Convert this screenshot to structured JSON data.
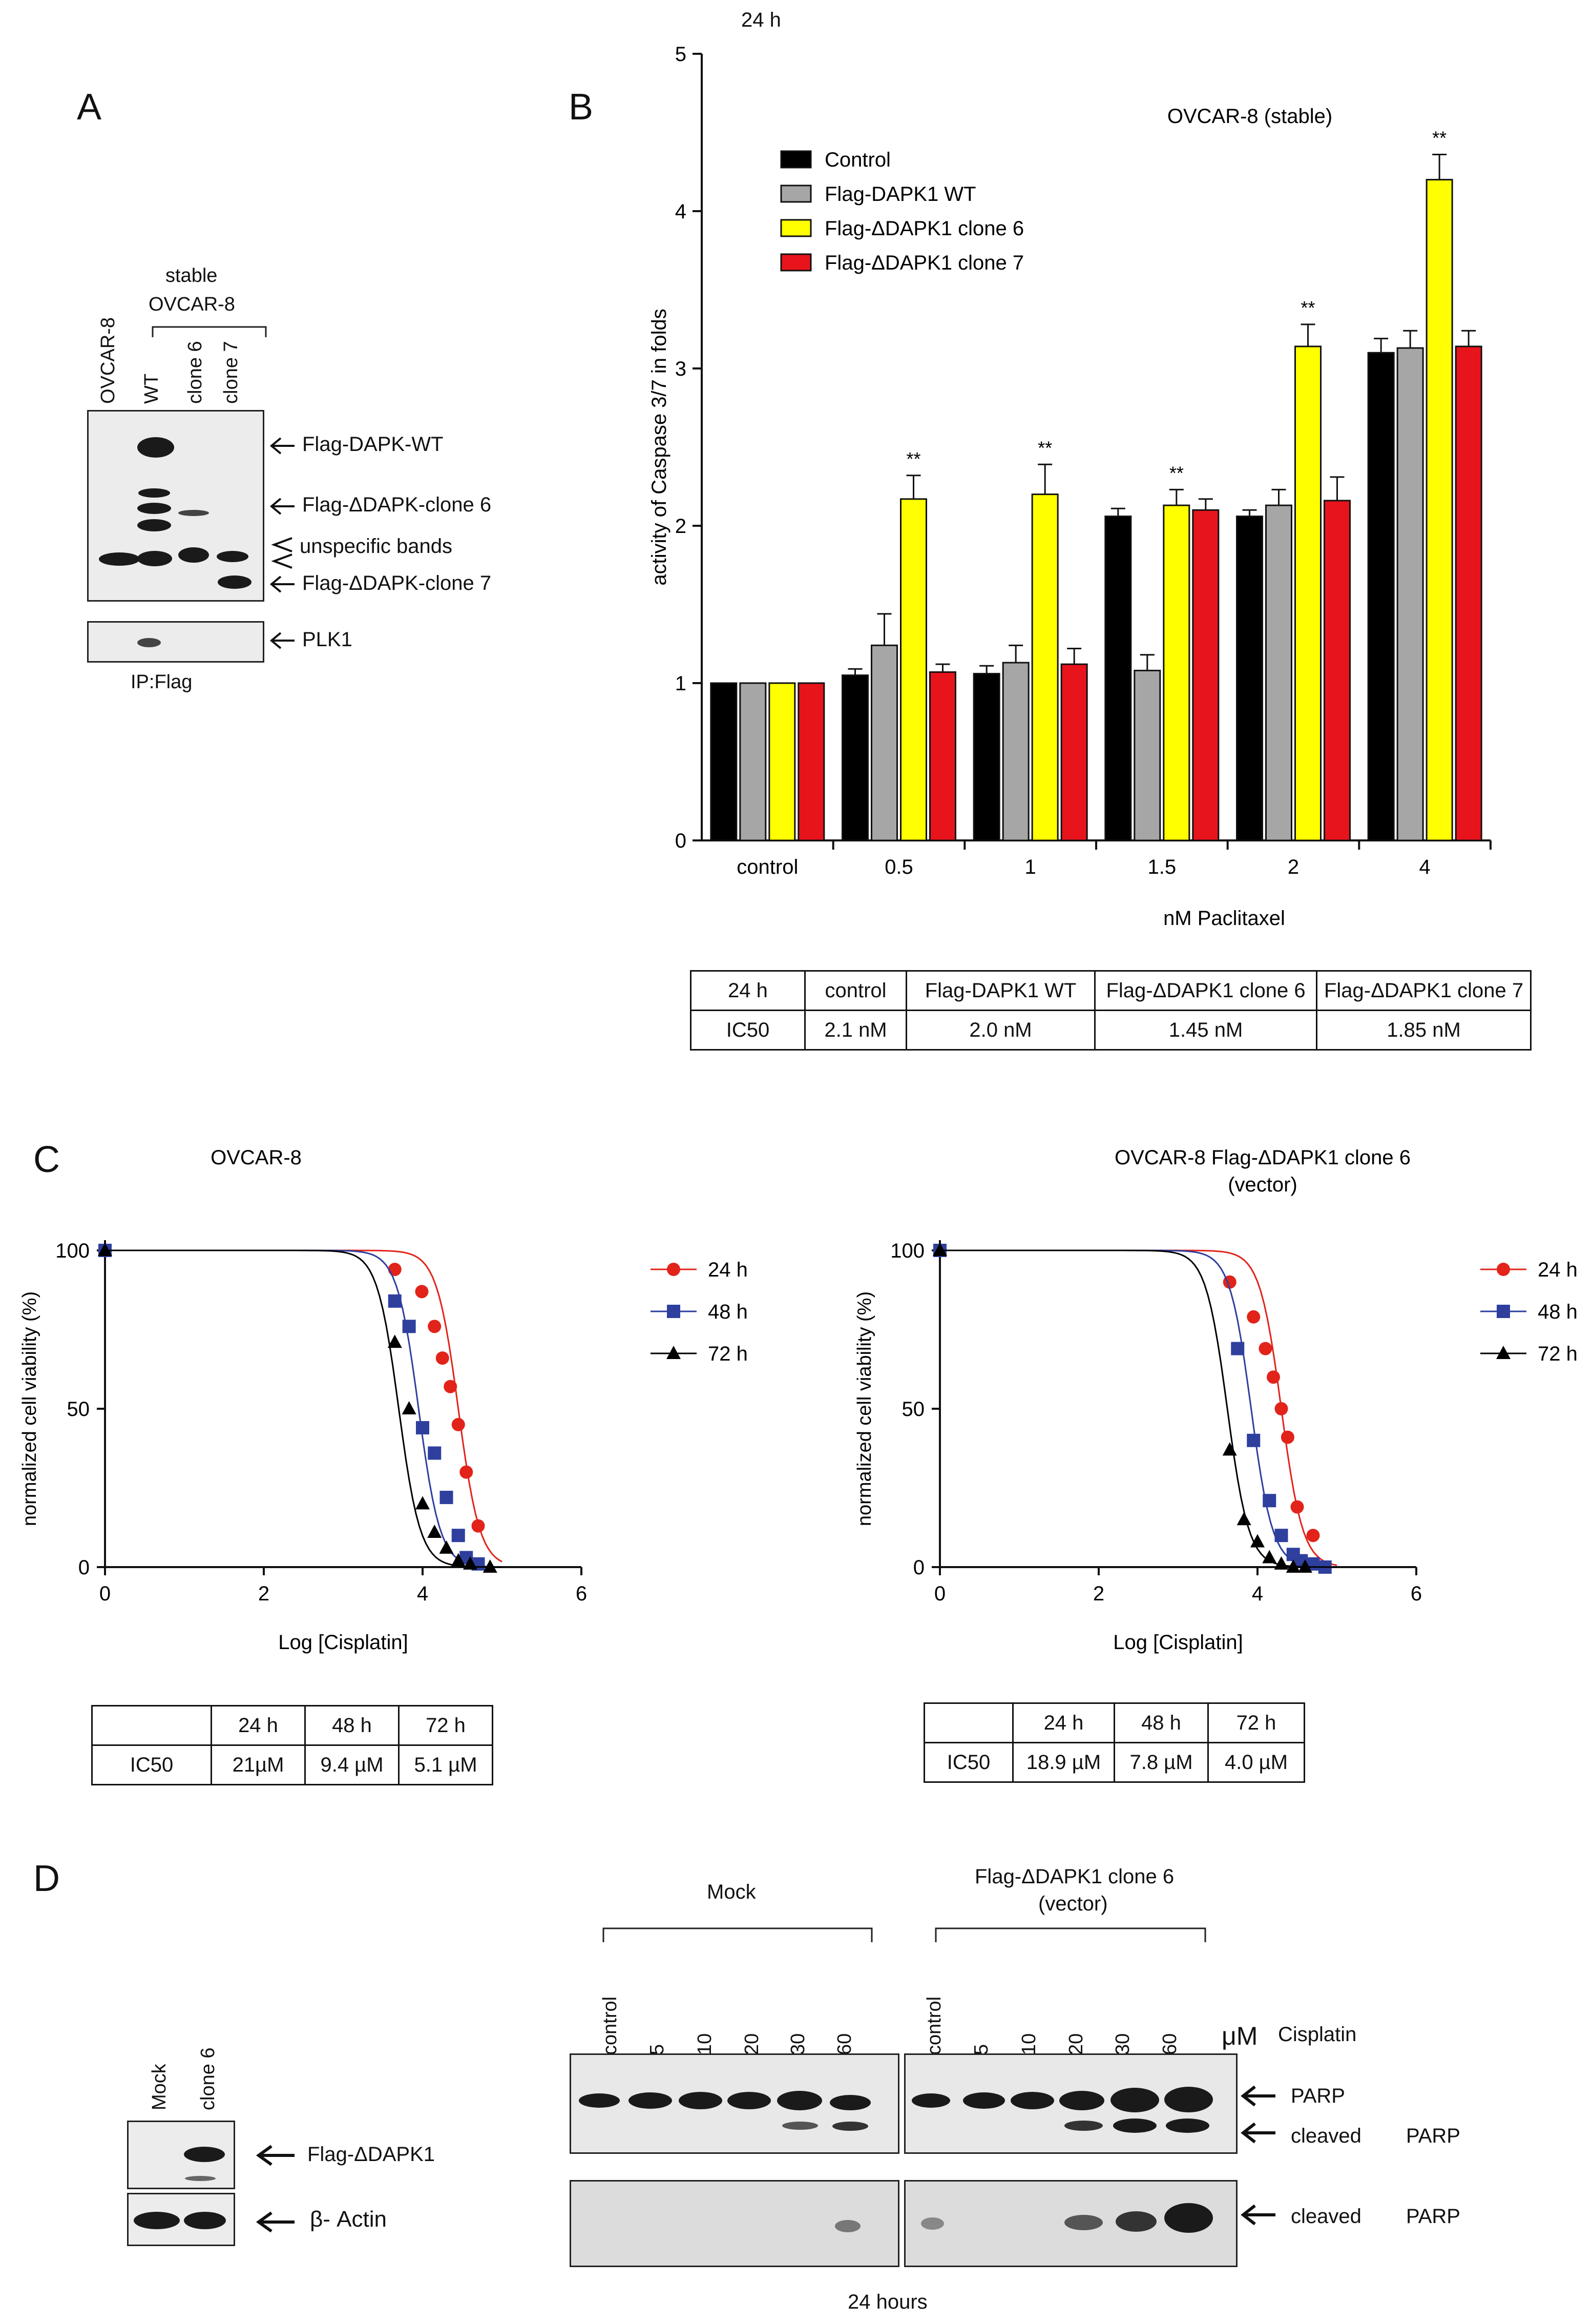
{
  "panelA": {
    "label": "A",
    "stable_label": "stable",
    "cell_line_label": "OVCAR-8",
    "lanes": [
      "OVCAR-8",
      "WT",
      "clone 6",
      "clone 7"
    ],
    "annotations": [
      "Flag-DAPK-WT",
      "Flag-ΔDAPK-clone 6",
      "unspecific bands",
      "Flag-ΔDAPK-clone 7",
      "PLK1"
    ],
    "ip_label": "IP:Flag"
  },
  "panelB": {
    "label": "B",
    "corner_label": "24 h",
    "table": {
      "headers": [
        "24 h",
        "control",
        "Flag-DAPK1 WT",
        "Flag-ΔDAPK1 clone 6",
        "Flag-ΔDAPK1 clone 7"
      ],
      "row": [
        "IC50",
        "2.1 nM",
        "2.0 nM",
        "1.45 nM",
        "1.85 nM"
      ]
    }
  },
  "panelC": {
    "label": "C",
    "left_table": {
      "headers": [
        "",
        "24 h",
        "48 h",
        "72 h"
      ],
      "row": [
        "IC50",
        "21µM",
        "9.4 µM",
        "5.1 µM"
      ]
    },
    "right_table": {
      "headers": [
        "",
        "24 h",
        "48 h",
        "72 h"
      ],
      "row": [
        "IC50",
        "18.9 µM",
        "7.8 µM",
        "4.0 µM"
      ]
    }
  },
  "panelD": {
    "label": "D",
    "small_lanes": [
      "Mock",
      "clone 6"
    ],
    "small_annotations": [
      "Flag-ΔDAPK1",
      "β- Actin"
    ],
    "group_mock": "Mock",
    "group_clone": "Flag-ΔDAPK1 clone 6",
    "group_clone_sub": "(vector)",
    "doses": [
      "control",
      "5",
      "10",
      "20",
      "30",
      "60"
    ],
    "unit": "μM",
    "drug": "Cisplatin",
    "annot_parp": "PARP",
    "annot_cleaved": "cleaved",
    "footer": "24   hours"
  },
  "chart_data": [
    {
      "type": "bar",
      "title": "OVCAR-8 (stable)",
      "xlabel": "nM Paclitaxel",
      "ylabel": "activity of Caspase 3/7 in folds",
      "ylim": [
        0,
        5
      ],
      "yticks": [
        0,
        1,
        2,
        3,
        4,
        5
      ],
      "categories": [
        "control",
        "0.5",
        "1",
        "1.5",
        "2",
        "4"
      ],
      "series": [
        {
          "name": "Control",
          "color": "#000000",
          "values": [
            1.0,
            1.05,
            1.06,
            2.06,
            2.06,
            3.1
          ],
          "errors": [
            0,
            0.04,
            0.05,
            0.05,
            0.04,
            0.09
          ]
        },
        {
          "name": "Flag-DAPK1 WT",
          "color": "#a6a6a6",
          "values": [
            1.0,
            1.24,
            1.13,
            1.08,
            2.13,
            3.13
          ],
          "errors": [
            0,
            0.2,
            0.11,
            0.1,
            0.1,
            0.11
          ]
        },
        {
          "name": "Flag-ΔDAPK1 clone 6",
          "color": "#ffff00",
          "values": [
            1.0,
            2.17,
            2.2,
            2.13,
            3.14,
            4.2
          ],
          "errors": [
            0,
            0.15,
            0.19,
            0.1,
            0.14,
            0.16
          ]
        },
        {
          "name": "Flag-ΔDAPK1 clone 7",
          "color": "#e8141c",
          "values": [
            1.0,
            1.07,
            1.12,
            2.1,
            2.16,
            3.14
          ],
          "errors": [
            0,
            0.05,
            0.1,
            0.07,
            0.15,
            0.1
          ]
        }
      ],
      "annotations": [
        {
          "category": "0.5",
          "series": "Flag-ΔDAPK1 clone 6",
          "text": "**"
        },
        {
          "category": "1",
          "series": "Flag-ΔDAPK1 clone 6",
          "text": "**"
        },
        {
          "category": "1.5",
          "series": "Flag-ΔDAPK1 clone 6",
          "text": "**"
        },
        {
          "category": "2",
          "series": "Flag-ΔDAPK1 clone 6",
          "text": "**"
        },
        {
          "category": "4",
          "series": "Flag-ΔDAPK1 clone 6",
          "text": "**"
        }
      ]
    },
    {
      "type": "scatter",
      "title": "OVCAR-8",
      "xlabel": "Log [Cisplatin]",
      "ylabel": "normalized cell viability (%)",
      "xlim": [
        0,
        6
      ],
      "ylim": [
        0,
        100
      ],
      "xticks": [
        0,
        2,
        4,
        6
      ],
      "yticks": [
        0,
        50,
        100
      ],
      "legend": "right",
      "series": [
        {
          "name": "24 h",
          "color": "#e2231a",
          "marker": "circle",
          "logIC50": 4.45,
          "x": [
            0,
            3.65,
            3.99,
            4.15,
            4.25,
            4.35,
            4.45,
            4.55,
            4.7
          ],
          "y": [
            100,
            94,
            87,
            76,
            66,
            57,
            45,
            30,
            13
          ]
        },
        {
          "name": "48 h",
          "color": "#2e3f9e",
          "marker": "square",
          "logIC50": 3.95,
          "x": [
            0,
            3.65,
            3.83,
            4.0,
            4.15,
            4.3,
            4.45,
            4.55,
            4.7
          ],
          "y": [
            100,
            84,
            76,
            44,
            36,
            22,
            10,
            3,
            1
          ]
        },
        {
          "name": "72 h",
          "color": "#000000",
          "marker": "triangle",
          "logIC50": 3.7,
          "x": [
            0,
            3.65,
            3.83,
            4.0,
            4.15,
            4.3,
            4.45,
            4.6,
            4.85
          ],
          "y": [
            100,
            71,
            50,
            20,
            11,
            6,
            2,
            1,
            0
          ]
        }
      ]
    },
    {
      "type": "scatter",
      "title": "OVCAR-8 Flag-ΔDAPK1 clone 6",
      "subtitle": "(vector)",
      "xlabel": "Log [Cisplatin]",
      "ylabel": "normalized cell viability (%)",
      "xlim": [
        0,
        6
      ],
      "ylim": [
        0,
        100
      ],
      "xticks": [
        0,
        2,
        4,
        6
      ],
      "yticks": [
        0,
        50,
        100
      ],
      "legend": "right",
      "series": [
        {
          "name": "24 h",
          "color": "#e2231a",
          "marker": "circle",
          "logIC50": 4.3,
          "x": [
            0,
            3.65,
            3.95,
            4.1,
            4.2,
            4.3,
            4.38,
            4.5,
            4.7
          ],
          "y": [
            100,
            90,
            79,
            69,
            60,
            50,
            41,
            19,
            10
          ]
        },
        {
          "name": "48 h",
          "color": "#2e3f9e",
          "marker": "square",
          "logIC50": 3.92,
          "x": [
            0,
            3.75,
            3.95,
            4.15,
            4.3,
            4.45,
            4.55,
            4.7,
            4.85
          ],
          "y": [
            100,
            69,
            40,
            21,
            10,
            4,
            2,
            1,
            0
          ]
        },
        {
          "name": "72 h",
          "color": "#000000",
          "marker": "triangle",
          "logIC50": 3.62,
          "x": [
            0,
            3.65,
            3.83,
            4.0,
            4.15,
            4.3,
            4.45,
            4.6
          ],
          "y": [
            100,
            37,
            15,
            8,
            3,
            1,
            0,
            0
          ]
        }
      ]
    }
  ]
}
